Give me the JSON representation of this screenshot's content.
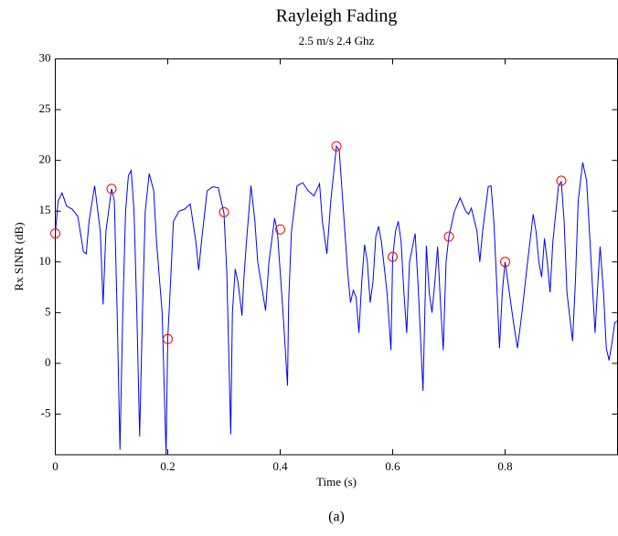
{
  "chart_data": {
    "type": "line",
    "title": "Rayleigh Fading",
    "subtitle": "2.5 m/s 2.4 Ghz",
    "xlabel": "Time (s)",
    "ylabel": "Rx SINR (dB)",
    "caption": "(a)",
    "xlim": [
      0,
      1
    ],
    "ylim": [
      -9,
      30
    ],
    "xticks": [
      0,
      0.2,
      0.4,
      0.6,
      0.8
    ],
    "yticks": [
      -5,
      0,
      5,
      10,
      15,
      20,
      25,
      30
    ],
    "grid": false,
    "series": [
      {
        "color": "#0000ff",
        "x": [
          0,
          0.005,
          0.012,
          0.02,
          0.03,
          0.04,
          0.05,
          0.055,
          0.06,
          0.07,
          0.08,
          0.085,
          0.09,
          0.1,
          0.105,
          0.11,
          0.115,
          0.12,
          0.125,
          0.13,
          0.135,
          0.14,
          0.145,
          0.15,
          0.155,
          0.16,
          0.167,
          0.175,
          0.18,
          0.19,
          0.197,
          0.2,
          0.205,
          0.21,
          0.22,
          0.23,
          0.24,
          0.25,
          0.255,
          0.26,
          0.27,
          0.28,
          0.29,
          0.295,
          0.3,
          0.305,
          0.312,
          0.315,
          0.32,
          0.325,
          0.332,
          0.335,
          0.34,
          0.348,
          0.355,
          0.36,
          0.374,
          0.38,
          0.39,
          0.395,
          0.405,
          0.413,
          0.415,
          0.42,
          0.43,
          0.44,
          0.45,
          0.46,
          0.47,
          0.475,
          0.483,
          0.49,
          0.5,
          0.505,
          0.51,
          0.52,
          0.525,
          0.53,
          0.535,
          0.54,
          0.545,
          0.55,
          0.555,
          0.56,
          0.565,
          0.57,
          0.575,
          0.58,
          0.59,
          0.597,
          0.6,
          0.605,
          0.61,
          0.615,
          0.62,
          0.625,
          0.63,
          0.64,
          0.645,
          0.654,
          0.66,
          0.665,
          0.67,
          0.675,
          0.68,
          0.685,
          0.69,
          0.695,
          0.7,
          0.71,
          0.72,
          0.73,
          0.735,
          0.74,
          0.75,
          0.755,
          0.76,
          0.77,
          0.775,
          0.78,
          0.785,
          0.79,
          0.795,
          0.8,
          0.805,
          0.815,
          0.822,
          0.83,
          0.84,
          0.85,
          0.855,
          0.86,
          0.865,
          0.87,
          0.875,
          0.88,
          0.885,
          0.895,
          0.9,
          0.905,
          0.91,
          0.92,
          0.925,
          0.93,
          0.938,
          0.945,
          0.95,
          0.955,
          0.96,
          0.965,
          0.969,
          0.975,
          0.98,
          0.985,
          0.99,
          0.995,
          1.0
        ],
        "values": [
          12.8,
          16.0,
          16.8,
          15.5,
          15.2,
          14.5,
          11,
          10.8,
          14,
          17.5,
          13,
          5.8,
          13,
          17.2,
          16,
          5,
          -8.5,
          5,
          15,
          18.5,
          19,
          15,
          5,
          -7.2,
          5,
          15,
          18.7,
          17,
          12,
          5,
          -9,
          2.5,
          8,
          14,
          15,
          15.2,
          15.7,
          12,
          9.2,
          12,
          17,
          17.4,
          17.3,
          16,
          14.8,
          9,
          -7,
          5,
          9.3,
          8,
          4.7,
          8,
          12,
          17.5,
          14,
          10,
          5.2,
          10,
          14.3,
          13,
          5,
          -2.2,
          6,
          13,
          17.5,
          17.8,
          17,
          16.5,
          17.7,
          14,
          10.8,
          16,
          21.4,
          21,
          17,
          9,
          6,
          7.2,
          6.5,
          3,
          8,
          11.7,
          10,
          6,
          8,
          12.5,
          13.5,
          12,
          7,
          1.3,
          10.4,
          13,
          14,
          12,
          7,
          3,
          10,
          12.8,
          8,
          -2.7,
          11.6,
          7,
          5,
          8,
          11.5,
          6,
          1.3,
          10,
          12.5,
          15,
          16.3,
          15,
          14.7,
          15.3,
          13,
          10,
          13,
          17.4,
          17.5,
          14,
          8,
          1.5,
          7,
          10,
          8,
          4,
          1.5,
          5,
          10,
          14.7,
          13,
          10,
          8.5,
          12.3,
          10,
          7,
          12,
          17.5,
          17.9,
          14,
          7,
          2.2,
          8,
          16,
          19.8,
          18,
          13,
          8,
          3,
          8,
          11.5,
          7,
          1.5,
          0.3,
          2,
          4,
          4.2
        ]
      },
      {
        "color": "#ff0000",
        "marker": "circle",
        "line": false,
        "x": [
          0,
          0.1,
          0.2,
          0.3,
          0.4,
          0.5,
          0.6,
          0.7,
          0.8,
          0.9
        ],
        "values": [
          12.8,
          17.2,
          2.4,
          14.9,
          13.2,
          21.4,
          10.5,
          12.5,
          10,
          18
        ]
      }
    ]
  }
}
